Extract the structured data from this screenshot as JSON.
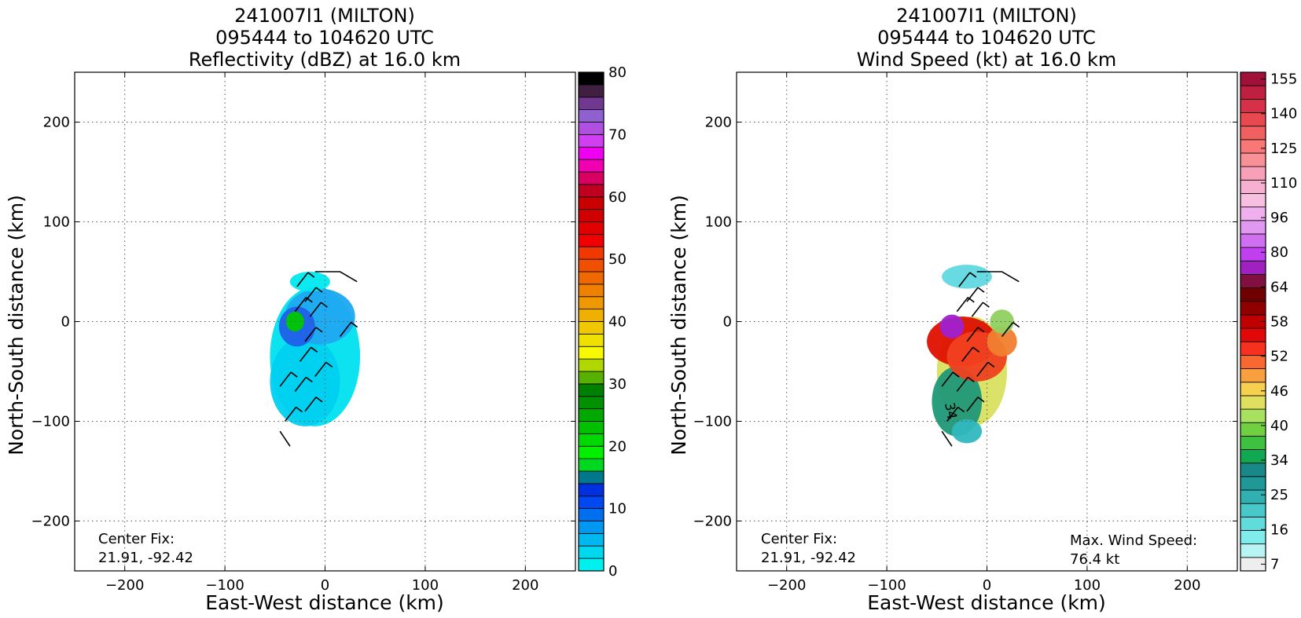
{
  "chart_data": [
    {
      "type": "heatmap",
      "title": [
        "241007I1 (MILTON)",
        "095444 to 104620 UTC",
        "Reflectivity (dBZ) at 16.0 km"
      ],
      "xlabel": "East-West distance (km)",
      "ylabel": "North-South distance (km)",
      "xlim": [
        -250,
        250
      ],
      "ylim": [
        -250,
        250
      ],
      "xticks": [
        -200,
        -100,
        0,
        100,
        200
      ],
      "yticks": [
        -200,
        -100,
        0,
        100,
        200
      ],
      "grid": true,
      "center_fix_label": "Center Fix:",
      "center_fix_value": "21.91, -92.42",
      "colorbar": {
        "min": 0,
        "max": 80,
        "step": 2.5,
        "ticks": [
          0,
          10,
          20,
          30,
          40,
          50,
          60,
          70,
          80
        ],
        "colors": [
          "#00f0f0",
          "#00d8f0",
          "#00b8f0",
          "#0098f0",
          "#0070f0",
          "#0048f0",
          "#0030e0",
          "#00788c",
          "#00d820",
          "#00f000",
          "#00d800",
          "#00c000",
          "#00a800",
          "#009000",
          "#008000",
          "#58b000",
          "#b0d800",
          "#f8f800",
          "#f0e000",
          "#f0c800",
          "#f0b000",
          "#f09800",
          "#f08000",
          "#f06800",
          "#f05000",
          "#f03800",
          "#f00000",
          "#e00000",
          "#d00000",
          "#c80000",
          "#c00020",
          "#d80060",
          "#f000b0",
          "#f000f0",
          "#d040f0",
          "#b050e0",
          "#9060d0",
          "#703890",
          "#402040",
          "#000000"
        ]
      },
      "storm_blobs": [
        {
          "x": -10,
          "y": -35,
          "rx": 45,
          "ry": 70,
          "color": "#00e0f0"
        },
        {
          "x": -20,
          "y": -60,
          "rx": 35,
          "ry": 45,
          "color": "#00d0f0"
        },
        {
          "x": -5,
          "y": 5,
          "rx": 35,
          "ry": 28,
          "color": "#20a8f0"
        },
        {
          "x": -28,
          "y": -5,
          "rx": 18,
          "ry": 20,
          "color": "#2060e8"
        },
        {
          "x": -30,
          "y": 0,
          "rx": 9,
          "ry": 10,
          "color": "#00c800"
        },
        {
          "x": -15,
          "y": 40,
          "rx": 20,
          "ry": 10,
          "color": "#00e8f0"
        }
      ]
    },
    {
      "type": "heatmap",
      "title": [
        "241007I1 (MILTON)",
        "095444 to 104620 UTC",
        "Wind Speed (kt) at 16.0 km"
      ],
      "xlabel": "East-West distance (km)",
      "ylabel": "North-South distance (km)",
      "xlim": [
        -250,
        250
      ],
      "ylim": [
        -250,
        250
      ],
      "xticks": [
        -200,
        -100,
        0,
        100,
        200
      ],
      "yticks": [
        -200,
        -100,
        0,
        100,
        200
      ],
      "grid": true,
      "center_fix_label": "Center Fix:",
      "center_fix_value": "21.91, -92.42",
      "max_wind_label": "Max. Wind Speed:",
      "max_wind_value": "76.4 kt",
      "contour_label": "34",
      "colorbar": {
        "ticks": [
          7,
          16,
          25,
          34,
          40,
          46,
          52,
          58,
          64,
          80,
          96,
          110,
          125,
          140,
          155
        ],
        "colors": [
          "#eeeeee",
          "#b8f4f4",
          "#80ecec",
          "#60dcdc",
          "#48c8c8",
          "#30b0b0",
          "#209898",
          "#188888",
          "#10a850",
          "#40c040",
          "#70d040",
          "#a8e060",
          "#e0e060",
          "#f8d050",
          "#f8a040",
          "#f86830",
          "#f83020",
          "#e00808",
          "#c00000",
          "#900000",
          "#700000",
          "#801040",
          "#a020c0",
          "#c040f0",
          "#d070f0",
          "#e098f0",
          "#f0b0f0",
          "#f8c0e0",
          "#f8b0d0",
          "#f8a0b8",
          "#f89098",
          "#f87878",
          "#f06060",
          "#e84850",
          "#d83048",
          "#c02040",
          "#a01038"
        ]
      },
      "storm_blobs": [
        {
          "x": -15,
          "y": -50,
          "rx": 35,
          "ry": 55,
          "color": "#d8e060"
        },
        {
          "x": -30,
          "y": -80,
          "rx": 25,
          "ry": 35,
          "color": "#209878"
        },
        {
          "x": -25,
          "y": -20,
          "rx": 35,
          "ry": 25,
          "color": "#e01000"
        },
        {
          "x": -10,
          "y": -35,
          "rx": 30,
          "ry": 25,
          "color": "#f04020"
        },
        {
          "x": 15,
          "y": -20,
          "rx": 15,
          "ry": 15,
          "color": "#f08030"
        },
        {
          "x": 15,
          "y": 0,
          "rx": 12,
          "ry": 12,
          "color": "#90d060"
        },
        {
          "x": -35,
          "y": -5,
          "rx": 12,
          "ry": 12,
          "color": "#a020d0"
        },
        {
          "x": -20,
          "y": 45,
          "rx": 25,
          "ry": 12,
          "color": "#60d8e0"
        },
        {
          "x": -20,
          "y": -110,
          "rx": 15,
          "ry": 12,
          "color": "#30b8c0"
        }
      ]
    }
  ]
}
